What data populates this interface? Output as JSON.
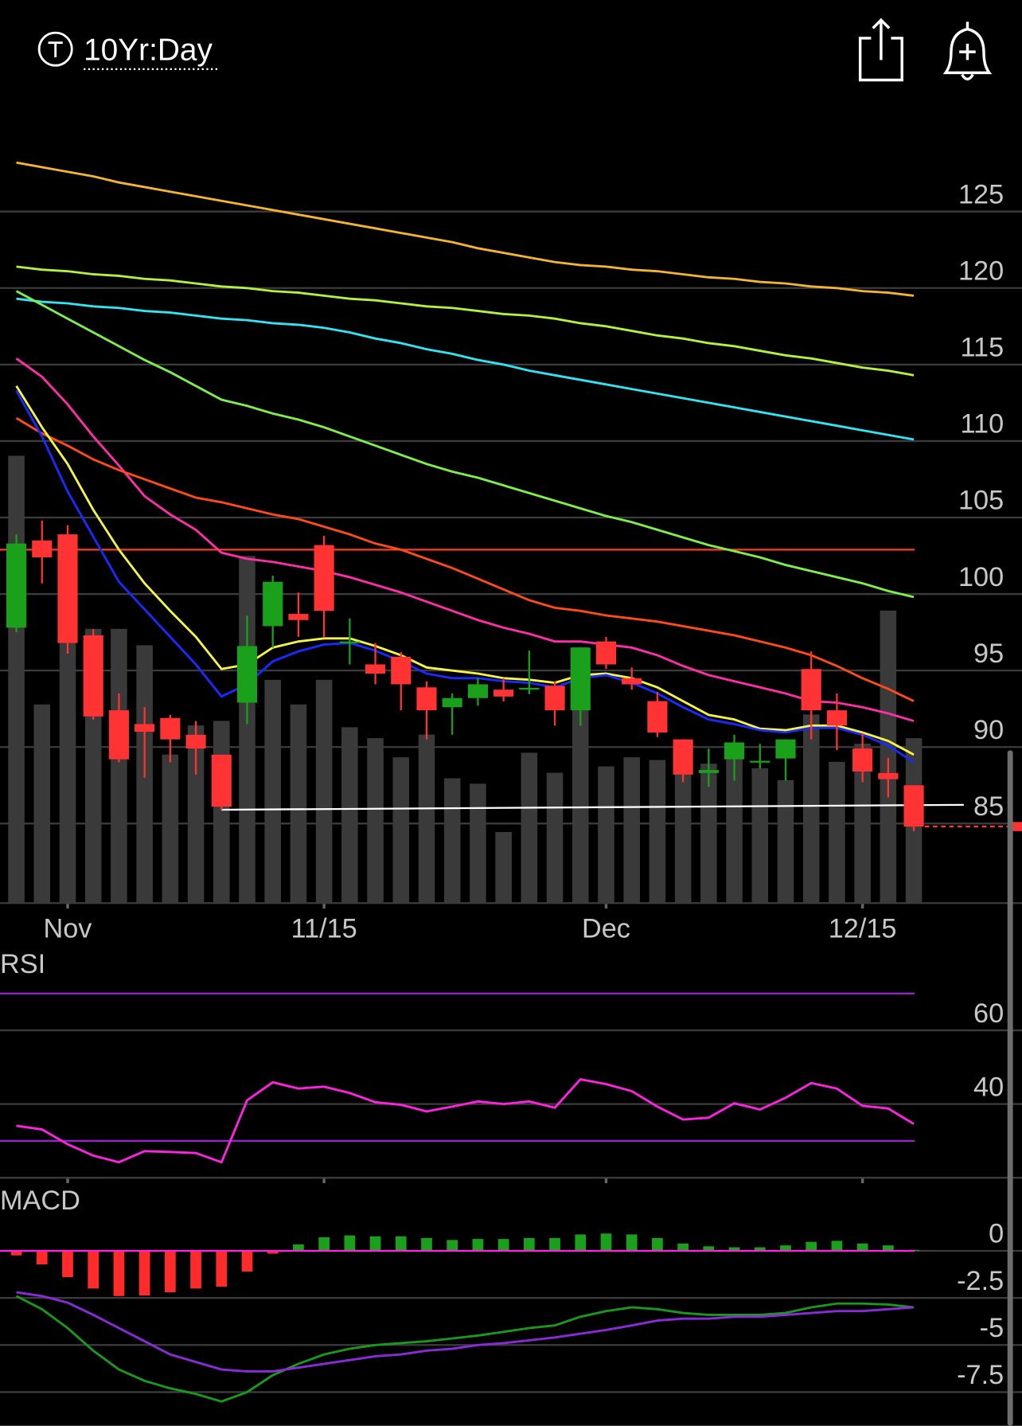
{
  "header": {
    "title": "10Yr:Day"
  },
  "chart_data": [
    {
      "type": "candlestick",
      "categories": [
        null,
        null,
        "Nov",
        null,
        null,
        null,
        null,
        null,
        null,
        null,
        null,
        null,
        "11/15",
        null,
        null,
        null,
        null,
        null,
        null,
        null,
        null,
        null,
        null,
        "Dec",
        null,
        null,
        null,
        null,
        null,
        null,
        null,
        null,
        null,
        "12/15",
        null,
        null
      ],
      "open": [
        97.8,
        103.5,
        103.9,
        97.3,
        92.4,
        91.5,
        91.9,
        90.8,
        89.5,
        92.9,
        97.9,
        98.7,
        103.2,
        96.8,
        95.4,
        95.9,
        93.9,
        92.6,
        93.2,
        93.75,
        93.75,
        94.0,
        92.4,
        96.9,
        94.5,
        93.0,
        90.5,
        88.3,
        89.2,
        89.0,
        89.25,
        95.1,
        92.4,
        89.9,
        88.3,
        87.5
      ],
      "high": [
        103.9,
        104.8,
        104.5,
        97.7,
        93.5,
        92.6,
        92.1,
        91.7,
        89.5,
        98.6,
        101.2,
        100.1,
        103.8,
        98.4,
        96.8,
        96.2,
        94.3,
        93.5,
        94.5,
        94.5,
        96.3,
        94.3,
        96.5,
        97.2,
        95.2,
        93.6,
        90.5,
        89.9,
        90.8,
        90.2,
        90.5,
        96.25,
        93.5,
        90.9,
        89.3,
        87.5
      ],
      "low": [
        97.5,
        100.7,
        96.1,
        91.8,
        89.0,
        88.0,
        89.0,
        88.2,
        85.9,
        91.5,
        96.5,
        97.2,
        97.2,
        95.4,
        94.1,
        92.4,
        90.5,
        90.8,
        92.7,
        92.98,
        93.45,
        91.4,
        91.4,
        95.1,
        93.75,
        90.65,
        87.7,
        87.4,
        87.8,
        88.6,
        87.8,
        90.5,
        89.8,
        87.7,
        86.7,
        84.5
      ],
      "close": [
        103.3,
        102.4,
        96.8,
        92.0,
        89.2,
        91.0,
        90.5,
        89.9,
        86.1,
        96.6,
        100.8,
        98.3,
        98.9,
        96.9,
        94.8,
        94.1,
        92.4,
        93.2,
        94.1,
        93.3,
        93.87,
        92.4,
        96.5,
        95.4,
        94.1,
        90.95,
        88.2,
        88.5,
        90.3,
        89.1,
        90.5,
        92.4,
        91.4,
        88.4,
        87.9,
        84.8
      ],
      "volume": [
        491,
        218,
        300,
        301,
        301,
        283,
        163,
        195,
        200,
        381,
        245,
        218,
        245,
        193,
        181,
        160,
        185,
        137,
        131,
        78,
        165,
        143,
        281,
        150,
        160,
        157,
        150,
        153,
        173,
        148,
        135,
        207,
        155,
        175,
        321,
        181
      ],
      "up_color": "#1aa01a",
      "down_color": "#ff3333",
      "volume_color": "#3a3a3a",
      "overlays": [
        {
          "color": "#f5b52e",
          "values": [
            128.2,
            127.9,
            127.6,
            127.3,
            126.9,
            126.6,
            126.3,
            126.0,
            125.7,
            125.4,
            125.1,
            124.8,
            124.5,
            124.2,
            123.9,
            123.6,
            123.3,
            123.0,
            122.6,
            122.3,
            122.0,
            121.7,
            121.5,
            121.4,
            121.2,
            121.1,
            120.9,
            120.7,
            120.6,
            120.4,
            120.3,
            120.1,
            120.0,
            119.8,
            119.7,
            119.5
          ]
        },
        {
          "color": "#b4f23c",
          "values": [
            121.4,
            121.2,
            121.1,
            120.9,
            120.8,
            120.6,
            120.5,
            120.3,
            120.1,
            120.0,
            119.8,
            119.7,
            119.5,
            119.3,
            119.2,
            119.0,
            118.8,
            118.7,
            118.5,
            118.3,
            118.2,
            118.0,
            117.7,
            117.5,
            117.2,
            116.9,
            116.7,
            116.4,
            116.2,
            115.9,
            115.6,
            115.4,
            115.1,
            114.8,
            114.6,
            114.3
          ]
        },
        {
          "color": "#2ee6f5",
          "values": [
            119.3,
            119.1,
            119.0,
            118.8,
            118.7,
            118.5,
            118.4,
            118.2,
            118.0,
            117.9,
            117.7,
            117.6,
            117.4,
            117.1,
            116.7,
            116.4,
            116.0,
            115.7,
            115.3,
            115.0,
            114.6,
            114.3,
            114.0,
            113.7,
            113.4,
            113.1,
            112.8,
            112.5,
            112.2,
            111.9,
            111.6,
            111.3,
            111.0,
            110.7,
            110.4,
            110.1
          ]
        },
        {
          "color": "#7ef04a",
          "values": [
            119.8,
            118.9,
            118.0,
            117.1,
            116.2,
            115.3,
            114.5,
            113.6,
            112.7,
            112.3,
            111.8,
            111.4,
            110.9,
            110.3,
            109.7,
            109.1,
            108.5,
            108.0,
            107.6,
            107.1,
            106.6,
            106.1,
            105.6,
            105.1,
            104.7,
            104.2,
            103.7,
            103.2,
            102.8,
            102.4,
            101.9,
            101.5,
            101.1,
            100.7,
            100.2,
            99.8
          ]
        },
        {
          "color": "#ff2ea8",
          "values": [
            115.4,
            114.2,
            112.4,
            110.3,
            108.4,
            106.4,
            105.2,
            104.2,
            102.7,
            102.3,
            102.1,
            101.8,
            101.5,
            101.1,
            100.6,
            100.1,
            99.5,
            98.9,
            98.3,
            97.8,
            97.4,
            96.9,
            96.9,
            96.7,
            96.5,
            96.0,
            95.3,
            94.7,
            94.3,
            93.9,
            93.5,
            93.0,
            92.9,
            92.6,
            92.2,
            91.7
          ]
        },
        {
          "color": "#ff4a1a",
          "values": [
            111.5,
            110.5,
            109.7,
            108.8,
            108.1,
            107.5,
            106.9,
            106.3,
            106.0,
            105.6,
            105.2,
            104.9,
            104.4,
            103.9,
            103.3,
            102.9,
            102.3,
            101.7,
            101.0,
            100.3,
            99.6,
            99.1,
            98.9,
            98.6,
            98.4,
            98.2,
            97.9,
            97.6,
            97.3,
            96.9,
            96.5,
            96.0,
            95.3,
            94.5,
            93.8,
            93.0
          ]
        },
        {
          "color": "#f5f545",
          "values": [
            113.6,
            110.9,
            108.5,
            105.5,
            102.9,
            100.7,
            98.9,
            97.2,
            95.1,
            95.4,
            96.5,
            96.9,
            97.1,
            97.1,
            96.6,
            96.0,
            95.2,
            95.0,
            94.8,
            94.5,
            94.4,
            94.2,
            94.7,
            94.8,
            94.5,
            93.9,
            93.0,
            92.1,
            91.8,
            91.2,
            91.1,
            91.4,
            91.4,
            90.95,
            90.4,
            89.5
          ]
        },
        {
          "color": "#1a2aff",
          "values": [
            113.3,
            110.3,
            106.7,
            103.75,
            100.8,
            99.0,
            97.2,
            95.4,
            93.3,
            94.1,
            95.6,
            96.25,
            96.7,
            96.8,
            96.3,
            95.6,
            94.8,
            94.5,
            94.5,
            94.3,
            94.2,
            93.9,
            94.5,
            94.7,
            94.2,
            93.5,
            92.6,
            91.8,
            91.5,
            91.1,
            90.95,
            91.25,
            91.25,
            90.8,
            90.1,
            89.0
          ]
        }
      ],
      "hlines": [
        {
          "value": 102.9,
          "color": "#ff3b1f"
        }
      ],
      "trendline": {
        "x": [
          8,
          35
        ],
        "values": [
          85.9,
          86.2
        ],
        "color": "#ffffff"
      },
      "last_color": "#ff3333",
      "ylim": [
        79.8,
        131.1
      ],
      "yticks": [
        85,
        90,
        95,
        100,
        105,
        110,
        115,
        120,
        125
      ],
      "grid": true
    },
    {
      "type": "line",
      "title": "RSI",
      "series": [
        {
          "color": "#ff22e0",
          "values": [
            34.1,
            33.1,
            29.1,
            26.0,
            24.2,
            27.2,
            27.0,
            26.7,
            24.2,
            41.0,
            45.9,
            44.2,
            44.7,
            43.0,
            40.5,
            39.8,
            38.0,
            39.3,
            40.7,
            40.0,
            40.7,
            39.0,
            46.7,
            45.4,
            43.5,
            39.3,
            35.8,
            36.3,
            40.2,
            38.5,
            41.7,
            45.7,
            44.2,
            39.5,
            38.8,
            34.6
          ]
        }
      ],
      "hlines": [
        {
          "value": 70,
          "color": "#9a22d0"
        },
        {
          "value": 30,
          "color": "#9a22d0"
        }
      ],
      "ylim": [
        20,
        81.7
      ],
      "yticks": [
        40,
        60
      ],
      "grid": true
    },
    {
      "type": "macd",
      "title": "MACD",
      "histogram": [
        -0.24,
        -0.72,
        -1.4,
        -2.0,
        -2.4,
        -2.37,
        -2.2,
        -2.0,
        -1.9,
        -1.1,
        -0.15,
        0.34,
        0.72,
        0.82,
        0.77,
        0.77,
        0.68,
        0.58,
        0.63,
        0.63,
        0.68,
        0.68,
        0.87,
        0.92,
        0.87,
        0.68,
        0.39,
        0.24,
        0.19,
        0.19,
        0.29,
        0.48,
        0.53,
        0.39,
        0.29,
        0.05
      ],
      "up_color": "#1aa01a",
      "down_color": "#ff2a2a",
      "zero_color": "#ff22e0",
      "series": [
        {
          "color": "#1a9a1a",
          "values": [
            -2.4,
            -3.1,
            -4.1,
            -5.3,
            -6.3,
            -6.9,
            -7.3,
            -7.6,
            -8.0,
            -7.5,
            -6.6,
            -6.0,
            -5.5,
            -5.2,
            -5.0,
            -4.9,
            -4.8,
            -4.65,
            -4.5,
            -4.3,
            -4.1,
            -3.96,
            -3.5,
            -3.2,
            -3.0,
            -3.1,
            -3.3,
            -3.4,
            -3.4,
            -3.4,
            -3.3,
            -3.0,
            -2.8,
            -2.8,
            -2.85,
            -3.0
          ]
        },
        {
          "color": "#8a2ad8",
          "values": [
            -2.2,
            -2.4,
            -2.75,
            -3.4,
            -4.1,
            -4.8,
            -5.5,
            -5.9,
            -6.3,
            -6.4,
            -6.4,
            -6.2,
            -6.0,
            -5.8,
            -5.6,
            -5.5,
            -5.3,
            -5.2,
            -5.0,
            -4.9,
            -4.75,
            -4.6,
            -4.4,
            -4.2,
            -3.96,
            -3.7,
            -3.6,
            -3.6,
            -3.5,
            -3.5,
            -3.4,
            -3.3,
            -3.2,
            -3.2,
            -3.1,
            -3.0
          ]
        }
      ],
      "ylim": [
        -9.3,
        3.4
      ],
      "yticks": [
        0,
        -2.5,
        -5,
        -7.5
      ],
      "grid": true
    }
  ]
}
